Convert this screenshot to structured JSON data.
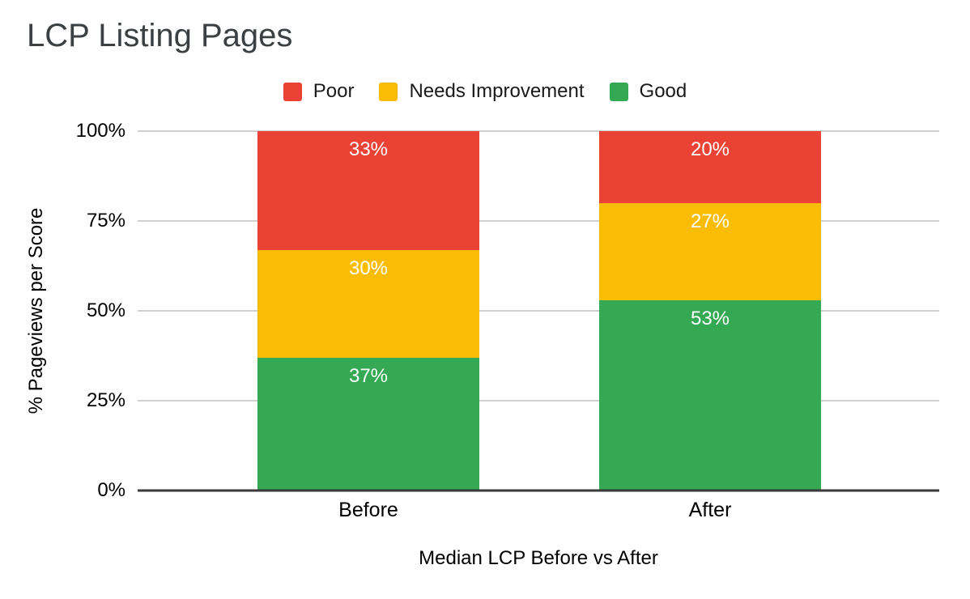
{
  "title": "LCP Listing Pages",
  "legend": {
    "items": [
      {
        "label": "Poor",
        "color": "#EA4335"
      },
      {
        "label": "Needs Improvement",
        "color": "#FBBC04"
      },
      {
        "label": "Good",
        "color": "#34A853"
      }
    ]
  },
  "chart_data": {
    "type": "bar",
    "stacked": true,
    "title": "LCP Listing Pages",
    "xlabel": "Median LCP Before vs After",
    "ylabel": "% Pageviews per Score",
    "categories": [
      "Before",
      "After"
    ],
    "series": [
      {
        "name": "Good",
        "color": "#34A853",
        "values": [
          37,
          53
        ]
      },
      {
        "name": "Needs Improvement",
        "color": "#FBBC04",
        "values": [
          30,
          27
        ]
      },
      {
        "name": "Poor",
        "color": "#EA4335",
        "values": [
          33,
          20
        ]
      }
    ],
    "value_label_format": "percent",
    "y_ticks": [
      "0%",
      "25%",
      "50%",
      "75%",
      "100%"
    ],
    "ylim": [
      0,
      100
    ],
    "grid": true,
    "legend_position": "top",
    "colors": {
      "gridline": "#d0d0d0",
      "baseline": "#3a3a3a",
      "bar_label": "#ffffff",
      "title": "#3c4043",
      "axis_text": "#000000"
    }
  }
}
